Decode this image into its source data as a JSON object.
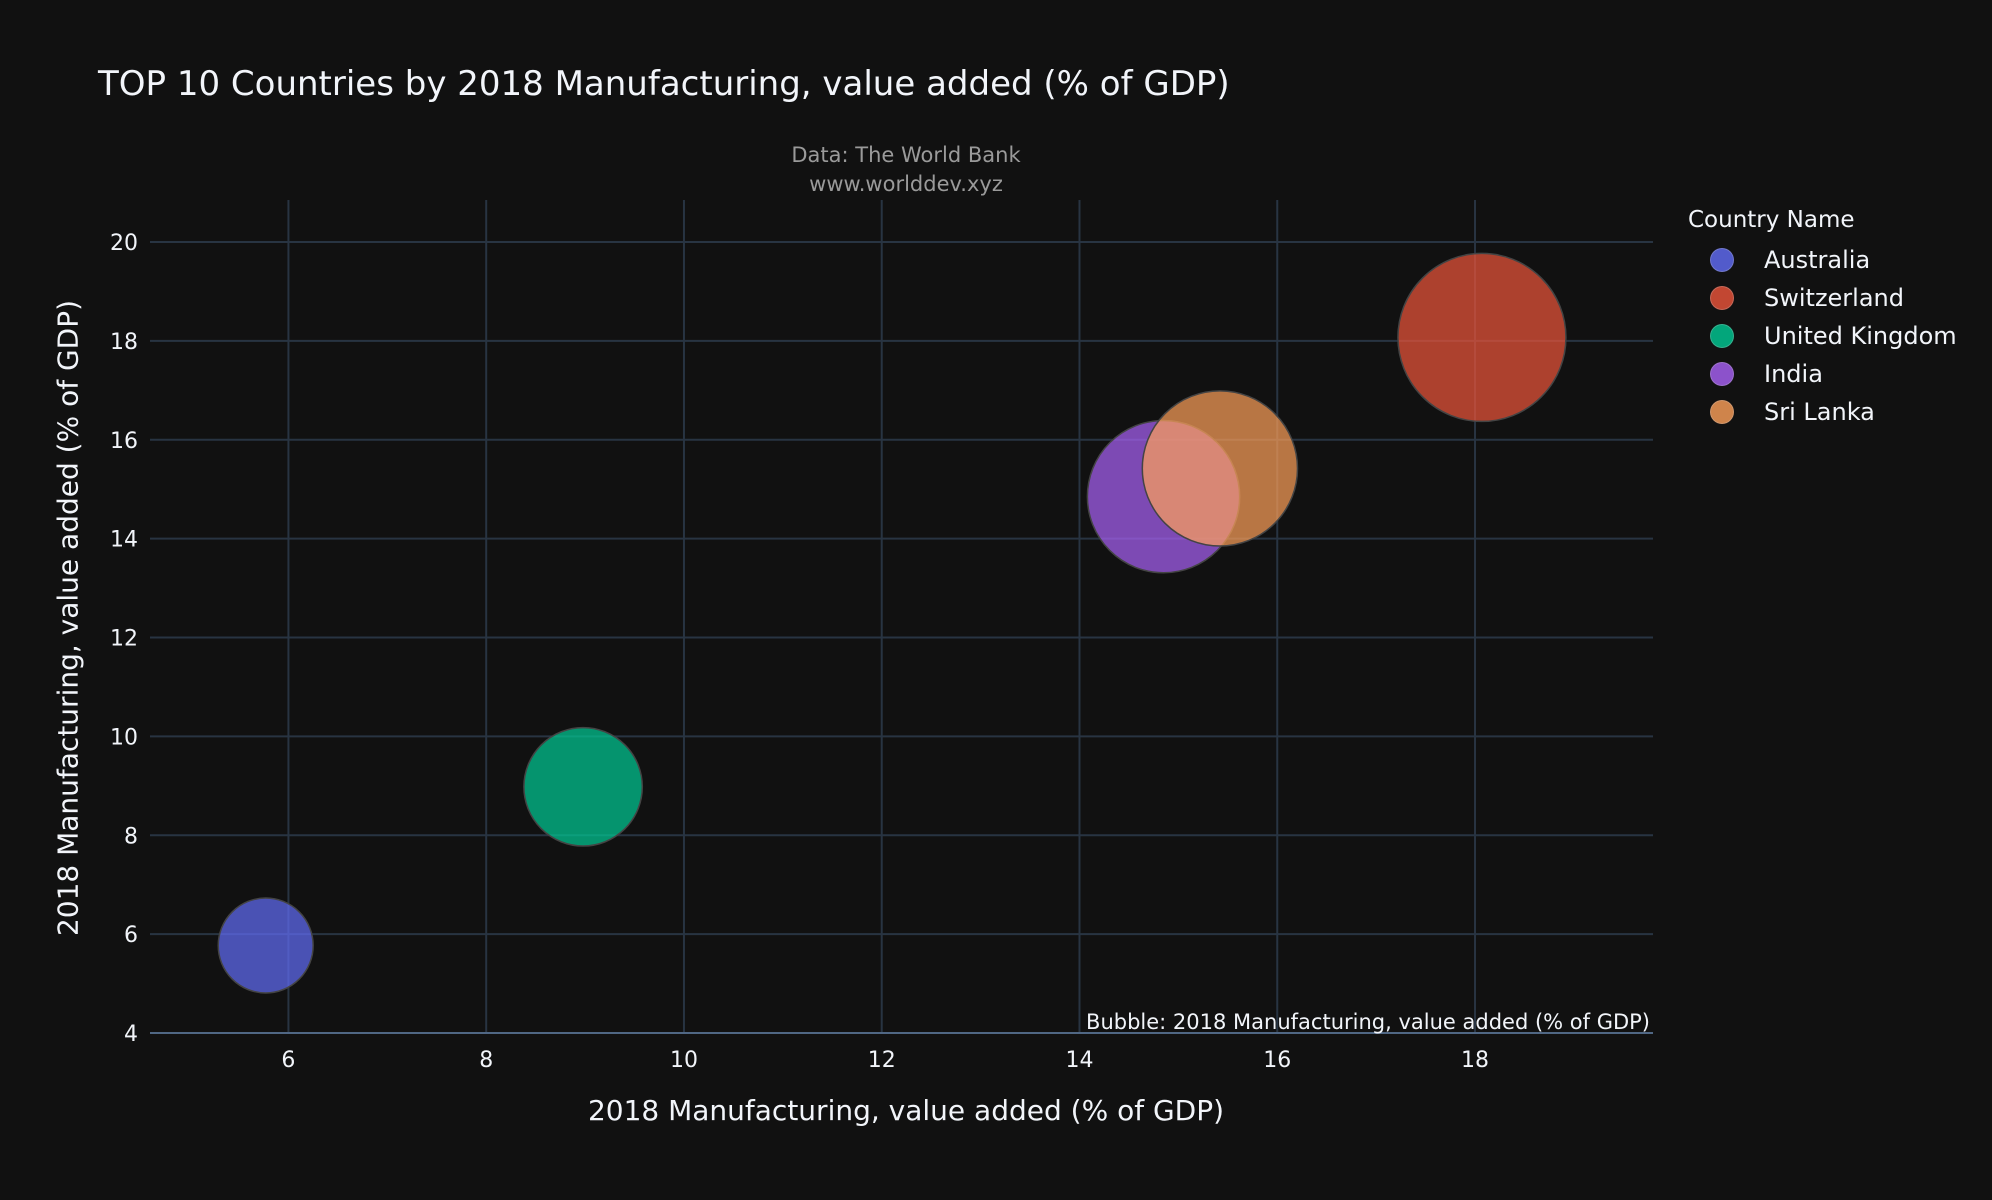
{
  "chart_data": {
    "type": "scatter",
    "title": "TOP 10 Countries by 2018 Manufacturing, value added (% of GDP)",
    "subtitle_lines": [
      "Data: The World Bank",
      "www.worlddev.xyz"
    ],
    "xlabel": "2018 Manufacturing, value added (% of GDP)",
    "ylabel": "2018 Manufacturing, value added (% of GDP)",
    "annotation": "Bubble: 2018 Manufacturing, value added (% of GDP)",
    "xlim": [
      4.6,
      19.8
    ],
    "ylim": [
      4,
      20.85
    ],
    "x_ticks": [
      6,
      8,
      10,
      12,
      14,
      16,
      18
    ],
    "y_ticks": [
      4,
      6,
      8,
      10,
      12,
      14,
      16,
      18,
      20
    ],
    "grid": true,
    "legend_title": "Country Name",
    "legend_placement": "right",
    "bubble_size_basis": "y value",
    "series": [
      {
        "name": "Australia",
        "x": 5.77,
        "y": 5.77,
        "size": 5.77,
        "color": "#636efa"
      },
      {
        "name": "Switzerland",
        "x": 18.07,
        "y": 18.07,
        "size": 18.07,
        "color": "#ef553b"
      },
      {
        "name": "United Kingdom",
        "x": 8.98,
        "y": 8.98,
        "size": 8.98,
        "color": "#00cc96"
      },
      {
        "name": "India",
        "x": 14.85,
        "y": 14.85,
        "size": 14.85,
        "color": "#ab63fa"
      },
      {
        "name": "Sri Lanka",
        "x": 15.42,
        "y": 15.42,
        "size": 15.42,
        "color": "#ffa15a"
      }
    ]
  }
}
